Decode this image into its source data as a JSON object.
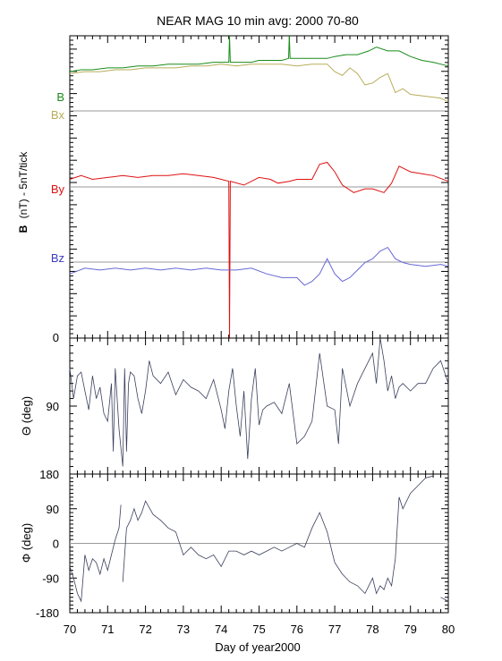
{
  "chart_data": [
    {
      "type": "line",
      "title": "NEAR MAG 10 min avg: 2000 70-80",
      "ylabel_bold": "B",
      "ylabel_rest": "(nT) - 5nT/tick",
      "xlim": [
        70,
        80
      ],
      "y_tick_label": "0",
      "series": [
        {
          "name": "B",
          "color": "#1a8c1a",
          "offset": 70,
          "x": [
            70.0,
            70.3,
            70.6,
            71.0,
            71.4,
            71.8,
            72.2,
            72.6,
            73.0,
            73.4,
            73.8,
            74.0,
            74.2,
            74.22,
            74.24,
            74.5,
            74.8,
            75.0,
            75.3,
            75.6,
            75.78,
            75.8,
            75.82,
            76.0,
            76.4,
            76.8,
            77.0,
            77.3,
            77.6,
            77.9,
            78.1,
            78.4,
            78.7,
            79.0,
            79.3,
            79.6,
            80.0
          ],
          "values": [
            0.5,
            1.0,
            1.0,
            1.5,
            1.5,
            2.0,
            2.0,
            2.5,
            2.5,
            2.5,
            3.0,
            3.0,
            3.0,
            28,
            3.0,
            3.0,
            3.0,
            3.5,
            3.5,
            3.5,
            4.0,
            25,
            4.0,
            4.0,
            4.0,
            4.0,
            4.5,
            5.0,
            5.0,
            6.0,
            7.0,
            6.0,
            6.0,
            4.5,
            3.5,
            3.0,
            2.0
          ]
        },
        {
          "name": "Bx",
          "color": "#b8ad5a",
          "offset": 64,
          "x": [
            70.0,
            70.4,
            70.8,
            71.2,
            71.6,
            72.0,
            72.4,
            72.8,
            73.2,
            73.6,
            74.0,
            74.4,
            74.8,
            75.2,
            75.6,
            76.0,
            76.4,
            76.8,
            77.0,
            77.2,
            77.4,
            77.6,
            77.8,
            78.0,
            78.2,
            78.4,
            78.6,
            78.8,
            79.0,
            79.4,
            79.8,
            80.0
          ],
          "values": [
            6.0,
            6.5,
            6.5,
            7.0,
            7.0,
            7.5,
            7.5,
            7.5,
            8.0,
            8.0,
            8.5,
            8.0,
            8.5,
            8.5,
            8.5,
            8.0,
            8.5,
            8.5,
            6.5,
            5.5,
            7.5,
            6.0,
            3.0,
            3.5,
            5.0,
            6.0,
            1.0,
            2.0,
            0.5,
            0.0,
            -0.5,
            -1.5
          ]
        },
        {
          "name": "By",
          "color": "#dd1111",
          "offset": 42,
          "x": [
            70.0,
            70.3,
            70.6,
            71.0,
            71.4,
            71.8,
            72.2,
            72.6,
            73.0,
            73.4,
            73.8,
            74.0,
            74.2,
            74.22,
            74.24,
            74.6,
            75.0,
            75.3,
            75.5,
            75.8,
            76.0,
            76.4,
            76.6,
            76.8,
            77.0,
            77.2,
            77.5,
            77.8,
            78.0,
            78.3,
            78.5,
            78.7,
            79.0,
            79.3,
            79.6,
            80.0
          ],
          "values": [
            0.0,
            1.0,
            0.0,
            0.5,
            1.0,
            0.5,
            1.0,
            1.0,
            1.5,
            1.0,
            0.5,
            0.0,
            -0.5,
            -60,
            -0.5,
            -1.5,
            0.5,
            0.0,
            -1.0,
            -0.5,
            0.0,
            0.0,
            4.0,
            4.5,
            2.0,
            -1.5,
            -3.5,
            -2.5,
            -2.5,
            -3.5,
            -1.0,
            3.5,
            2.0,
            1.5,
            1.0,
            -0.5
          ]
        },
        {
          "name": "Bz",
          "color": "#6767d6",
          "offset": 18,
          "x": [
            70.0,
            70.4,
            70.8,
            71.2,
            71.6,
            72.0,
            72.4,
            72.8,
            73.2,
            73.6,
            74.0,
            74.4,
            74.8,
            75.2,
            75.6,
            76.0,
            76.2,
            76.4,
            76.6,
            76.8,
            77.0,
            77.2,
            77.4,
            77.6,
            77.8,
            78.0,
            78.2,
            78.4,
            78.6,
            78.8,
            79.0,
            79.4,
            79.8,
            80.0
          ],
          "values": [
            -1.0,
            0.5,
            0.0,
            0.5,
            0.0,
            0.5,
            0.0,
            0.5,
            0.0,
            0.5,
            0.0,
            0.0,
            0.5,
            -1.0,
            -2.0,
            -2.0,
            -4.0,
            -3.0,
            -1.0,
            3.0,
            -1.0,
            -3.0,
            -2.0,
            0.0,
            2.0,
            3.0,
            5.0,
            6.0,
            3.0,
            2.0,
            1.5,
            1.0,
            1.5,
            1.0
          ]
        }
      ]
    },
    {
      "type": "line",
      "ylabel": "Θ (deg)",
      "xlim": [
        70,
        80
      ],
      "ylim": [
        180,
        0
      ],
      "yticks": [
        0,
        90
      ],
      "color": "#3a3f5c",
      "x": [
        70.0,
        70.05,
        70.1,
        70.2,
        70.3,
        70.4,
        70.5,
        70.6,
        70.7,
        70.8,
        70.9,
        71.0,
        71.1,
        71.15,
        71.2,
        71.3,
        71.4,
        71.45,
        71.5,
        71.55,
        71.6,
        71.7,
        71.8,
        71.9,
        72.0,
        72.1,
        72.2,
        72.4,
        72.6,
        72.8,
        73.0,
        73.2,
        73.4,
        73.6,
        73.8,
        74.0,
        74.1,
        74.2,
        74.3,
        74.4,
        74.5,
        74.6,
        74.7,
        74.8,
        74.9,
        75.0,
        75.1,
        75.2,
        75.4,
        75.6,
        75.8,
        76.0,
        76.2,
        76.4,
        76.6,
        76.8,
        77.0,
        77.1,
        77.2,
        77.4,
        77.6,
        77.8,
        78.0,
        78.1,
        78.2,
        78.3,
        78.4,
        78.5,
        78.6,
        78.7,
        78.8,
        79.0,
        79.2,
        79.4,
        79.6,
        79.8,
        80.0
      ],
      "values": [
        40,
        60,
        80,
        50,
        45,
        70,
        95,
        50,
        80,
        65,
        100,
        110,
        60,
        150,
        40,
        120,
        170,
        40,
        150,
        60,
        45,
        50,
        80,
        100,
        70,
        30,
        50,
        60,
        45,
        75,
        55,
        65,
        70,
        80,
        55,
        95,
        120,
        70,
        40,
        90,
        130,
        70,
        160,
        80,
        40,
        115,
        95,
        90,
        85,
        100,
        60,
        140,
        130,
        110,
        20,
        90,
        95,
        140,
        40,
        90,
        60,
        40,
        20,
        60,
        0,
        30,
        70,
        50,
        80,
        65,
        60,
        70,
        60,
        60,
        40,
        30,
        60
      ]
    },
    {
      "type": "line",
      "ylabel": "Φ (deg)",
      "xlim": [
        70,
        80
      ],
      "ylim": [
        -180,
        180
      ],
      "yticks": [
        180,
        90,
        0,
        -90,
        -180
      ],
      "xticks": [
        70,
        71,
        72,
        73,
        74,
        75,
        76,
        77,
        78,
        79,
        80
      ],
      "xlabel": "Day of year2000",
      "color": "#3a3f5c",
      "x": [
        70.0,
        70.1,
        70.2,
        70.3,
        70.4,
        70.5,
        70.6,
        70.7,
        70.8,
        70.9,
        71.0,
        71.1,
        71.2,
        71.3,
        71.35,
        71.4,
        71.5,
        71.6,
        71.7,
        71.8,
        71.9,
        72.0,
        72.2,
        72.4,
        72.6,
        72.8,
        73.0,
        73.2,
        73.4,
        73.6,
        73.8,
        74.0,
        74.2,
        74.4,
        74.6,
        74.8,
        75.0,
        75.2,
        75.4,
        75.6,
        75.8,
        76.0,
        76.2,
        76.4,
        76.6,
        76.8,
        77.0,
        77.2,
        77.4,
        77.6,
        77.8,
        78.0,
        78.1,
        78.2,
        78.3,
        78.4,
        78.5,
        78.6,
        78.7,
        78.8,
        79.0,
        79.2,
        79.4,
        79.6,
        79.8,
        80.0
      ],
      "values": [
        -60,
        -90,
        -130,
        -150,
        -30,
        -70,
        -40,
        -50,
        -80,
        -40,
        -70,
        -30,
        10,
        40,
        100,
        -100,
        40,
        60,
        90,
        60,
        80,
        110,
        75,
        60,
        40,
        30,
        -30,
        -10,
        -30,
        -40,
        -30,
        -60,
        -20,
        -20,
        -30,
        -20,
        -30,
        -20,
        -10,
        -20,
        -10,
        0,
        -10,
        40,
        80,
        30,
        -50,
        -80,
        -100,
        -110,
        -130,
        -90,
        -130,
        -110,
        -120,
        -90,
        -110,
        -40,
        120,
        90,
        130,
        150,
        170,
        175,
        -140,
        -150
      ]
    }
  ]
}
